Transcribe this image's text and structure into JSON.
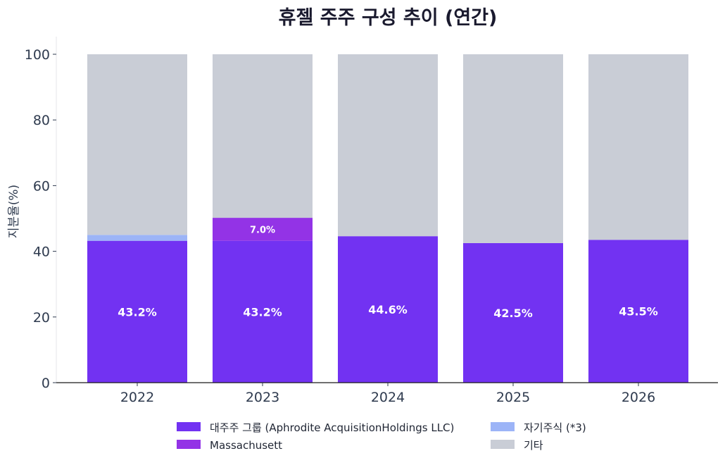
{
  "chart_data": {
    "type": "bar",
    "stacked": true,
    "title": "휴젤 주주 구성 추이 (연간)",
    "xlabel": "",
    "ylabel": "지분율(%)",
    "categories": [
      "2022",
      "2023",
      "2024",
      "2025",
      "2026"
    ],
    "ylim": [
      0,
      100
    ],
    "yticks": [
      0,
      20,
      40,
      60,
      80,
      100
    ],
    "grid": false,
    "legend_position": "bottom",
    "series": [
      {
        "name": "대주주 그룹 (Aphrodite AcquisitionHoldings LLC)",
        "color": "#7232f2",
        "values": [
          43.2,
          43.2,
          44.6,
          42.5,
          43.5
        ],
        "labels": [
          "43.2%",
          "43.2%",
          "44.6%",
          "42.5%",
          "43.5%"
        ]
      },
      {
        "name": "자기주식 (*3)",
        "color": "#9cb4f7",
        "values": [
          1.8,
          0,
          0,
          0,
          0
        ],
        "labels": [
          "",
          "",
          "",
          "",
          ""
        ]
      },
      {
        "name": "Massachusett",
        "color": "#9333e6",
        "values": [
          0,
          7.0,
          0,
          0,
          0
        ],
        "labels": [
          "",
          "7.0%",
          "",
          "",
          ""
        ]
      },
      {
        "name": "기타",
        "color": "#c9cdd6",
        "values": [
          55.0,
          49.8,
          55.4,
          57.5,
          56.5
        ],
        "labels": [
          "",
          "",
          "",
          "",
          ""
        ]
      }
    ]
  }
}
